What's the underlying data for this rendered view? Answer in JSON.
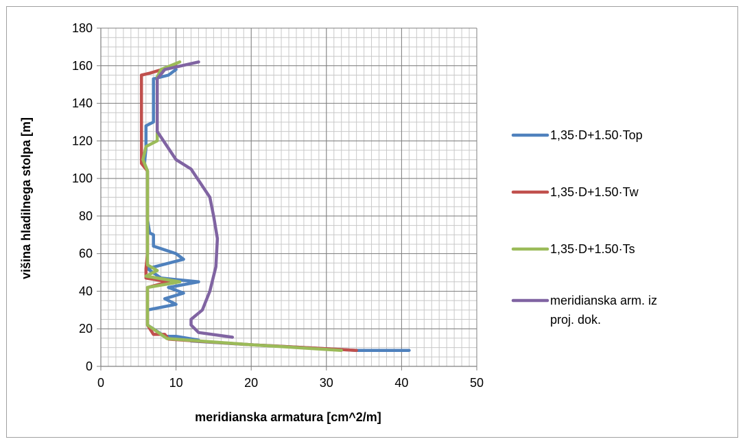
{
  "chart_data": {
    "type": "line",
    "xlabel": "meridianska armatura [cm^2/m]",
    "ylabel": "višina hladilnega stolpa [m]",
    "xlim": [
      0,
      50
    ],
    "ylim": [
      0,
      180
    ],
    "x_ticks": [
      0,
      10,
      20,
      30,
      40,
      50
    ],
    "y_ticks": [
      0,
      20,
      40,
      60,
      80,
      100,
      120,
      140,
      160,
      180
    ],
    "x_tick_labels": [
      "0",
      "10",
      "20",
      "30",
      "40",
      "50"
    ],
    "y_tick_labels": [
      "0",
      "20",
      "40",
      "60",
      "80",
      "100",
      "120",
      "140",
      "160",
      "180"
    ],
    "grid": {
      "major": true,
      "minor": true,
      "x_minor_step": 1,
      "y_minor_step": 5
    },
    "legend_position": "right",
    "series": [
      {
        "name": "1,35·D+1.50·Top",
        "color": "#4f81bd",
        "points": [
          [
            41.0,
            8.5
          ],
          [
            34.0,
            8.5
          ],
          [
            20.0,
            11.5
          ],
          [
            12.0,
            13.5
          ],
          [
            13.0,
            14.0
          ],
          [
            10.0,
            16.0
          ],
          [
            8.5,
            16.0
          ],
          [
            6.2,
            22.0
          ],
          [
            6.2,
            30.0
          ],
          [
            10.0,
            33.0
          ],
          [
            8.5,
            36.0
          ],
          [
            11.0,
            39.0
          ],
          [
            9.0,
            42.0
          ],
          [
            13.0,
            45.0
          ],
          [
            8.0,
            47.0
          ],
          [
            6.2,
            52.0
          ],
          [
            11.0,
            57.0
          ],
          [
            10.0,
            60.0
          ],
          [
            7.0,
            64.0
          ],
          [
            7.0,
            70.0
          ],
          [
            6.5,
            71.0
          ],
          [
            6.2,
            78.0
          ],
          [
            6.2,
            104.0
          ],
          [
            5.8,
            108.0
          ],
          [
            6.0,
            116.0
          ],
          [
            6.0,
            128.0
          ],
          [
            7.0,
            130.0
          ],
          [
            7.0,
            153.0
          ],
          [
            9.0,
            155.0
          ],
          [
            10.0,
            158.0
          ]
        ]
      },
      {
        "name": "1,35·D+1.50·Tw",
        "color": "#c0504d",
        "points": [
          [
            34.0,
            8.5
          ],
          [
            20.0,
            11.5
          ],
          [
            9.0,
            14.5
          ],
          [
            8.5,
            17.0
          ],
          [
            7.0,
            17.0
          ],
          [
            6.2,
            22.0
          ],
          [
            6.2,
            42.0
          ],
          [
            9.0,
            45.0
          ],
          [
            6.0,
            47.0
          ],
          [
            6.0,
            52.0
          ],
          [
            6.2,
            60.0
          ],
          [
            6.2,
            104.0
          ],
          [
            5.4,
            108.0
          ],
          [
            5.4,
            115.0
          ],
          [
            5.4,
            155.0
          ],
          [
            6.5,
            156.0
          ],
          [
            9.0,
            159.0
          ],
          [
            10.0,
            160.0
          ]
        ]
      },
      {
        "name": "1,35·D+1.50·Ts",
        "color": "#9bbb59",
        "points": [
          [
            32.0,
            8.5
          ],
          [
            20.0,
            11.5
          ],
          [
            8.8,
            14.8
          ],
          [
            8.0,
            17.0
          ],
          [
            6.2,
            22.0
          ],
          [
            6.2,
            42.0
          ],
          [
            10.5,
            45.0
          ],
          [
            6.0,
            48.0
          ],
          [
            7.5,
            51.0
          ],
          [
            6.2,
            54.0
          ],
          [
            6.2,
            104.0
          ],
          [
            5.6,
            110.0
          ],
          [
            6.0,
            117.0
          ],
          [
            7.5,
            120.0
          ],
          [
            7.5,
            154.0
          ],
          [
            8.0,
            158.0
          ],
          [
            10.5,
            162.0
          ]
        ]
      },
      {
        "name": "meridianska arm. iz proj. dok.",
        "color": "#8064a2",
        "points": [
          [
            17.5,
            15.5
          ],
          [
            13.0,
            18.0
          ],
          [
            12.0,
            22.0
          ],
          [
            12.0,
            25.0
          ],
          [
            13.5,
            30.0
          ],
          [
            14.5,
            40.0
          ],
          [
            15.3,
            53.0
          ],
          [
            15.5,
            68.0
          ],
          [
            15.0,
            80.0
          ],
          [
            14.5,
            90.0
          ],
          [
            12.0,
            105.0
          ],
          [
            10.0,
            110.0
          ],
          [
            7.5,
            125.0
          ],
          [
            7.5,
            153.0
          ],
          [
            8.5,
            158.0
          ],
          [
            13.0,
            162.0
          ]
        ]
      }
    ]
  }
}
